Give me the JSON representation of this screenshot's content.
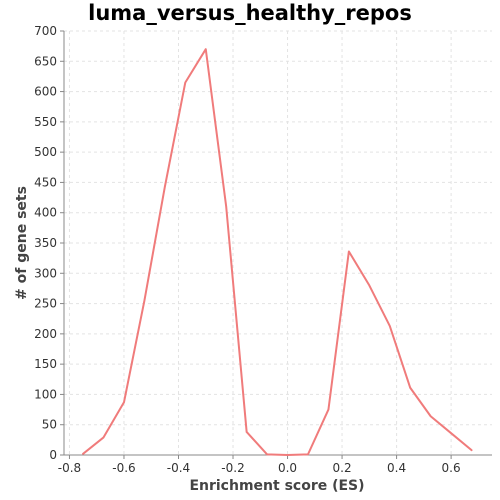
{
  "chart_data": {
    "type": "line",
    "title": "luma_versus_healthy_repos",
    "xlabel": "Enrichment score (ES)",
    "ylabel": "# of gene sets",
    "xlim": [
      -0.82,
      0.75
    ],
    "ylim": [
      0,
      700
    ],
    "x_ticks": [
      -0.8,
      -0.6,
      -0.4,
      -0.2,
      0.0,
      0.2,
      0.4,
      0.6
    ],
    "x_tick_labels": [
      "-0.8",
      "-0.6",
      "-0.4",
      "-0.2",
      "0.0",
      "0.2",
      "0.4",
      "0.6"
    ],
    "y_ticks": [
      0,
      50,
      100,
      150,
      200,
      250,
      300,
      350,
      400,
      450,
      500,
      550,
      600,
      650,
      700
    ],
    "y_tick_labels": [
      "0",
      "50",
      "100",
      "150",
      "200",
      "250",
      "300",
      "350",
      "400",
      "450",
      "500",
      "550",
      "600",
      "650",
      "700"
    ],
    "grid": true,
    "series": [
      {
        "color": "#f07b7b",
        "points": [
          [
            -0.75,
            2
          ],
          [
            -0.675,
            29
          ],
          [
            -0.6,
            87
          ],
          [
            -0.525,
            255
          ],
          [
            -0.45,
            443
          ],
          [
            -0.375,
            615
          ],
          [
            -0.3,
            670
          ],
          [
            -0.225,
            410
          ],
          [
            -0.15,
            38
          ],
          [
            -0.075,
            1
          ],
          [
            0.0,
            0
          ],
          [
            0.075,
            1
          ],
          [
            0.15,
            75
          ],
          [
            0.225,
            336
          ],
          [
            0.3,
            280
          ],
          [
            0.375,
            213
          ],
          [
            0.45,
            111
          ],
          [
            0.525,
            64
          ],
          [
            0.6,
            36
          ],
          [
            0.675,
            8
          ]
        ]
      }
    ]
  }
}
